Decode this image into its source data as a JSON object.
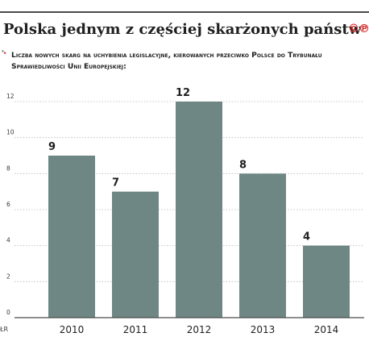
{
  "header": {
    "title": "Polska jednym z częściej skarżonych państw",
    "logo_text": "©℗",
    "source_label": "ŁR"
  },
  "chart_data": {
    "type": "bar",
    "title": "Polska jednym z częściej skarżonych państw",
    "subtitle": "Liczba nowych skarg na uchybienia legislacyjne, kierowanych przeciwko Polsce do Trybunału Sprawiedliwości Unii Europejskiej:",
    "categories": [
      "2010",
      "2011",
      "2012",
      "2013",
      "2014"
    ],
    "values": [
      9,
      7,
      12,
      8,
      4
    ],
    "ylim": [
      0,
      12
    ],
    "yticks": [
      0,
      2,
      4,
      6,
      8,
      10,
      12
    ],
    "grid": true,
    "bar_color": "#6f8784",
    "xlabel": "",
    "ylabel": ""
  },
  "colors": {
    "accent": "#d9302e",
    "bar": "#6f8784",
    "grid": "#b9b9b9",
    "text": "#1f1f1f"
  }
}
